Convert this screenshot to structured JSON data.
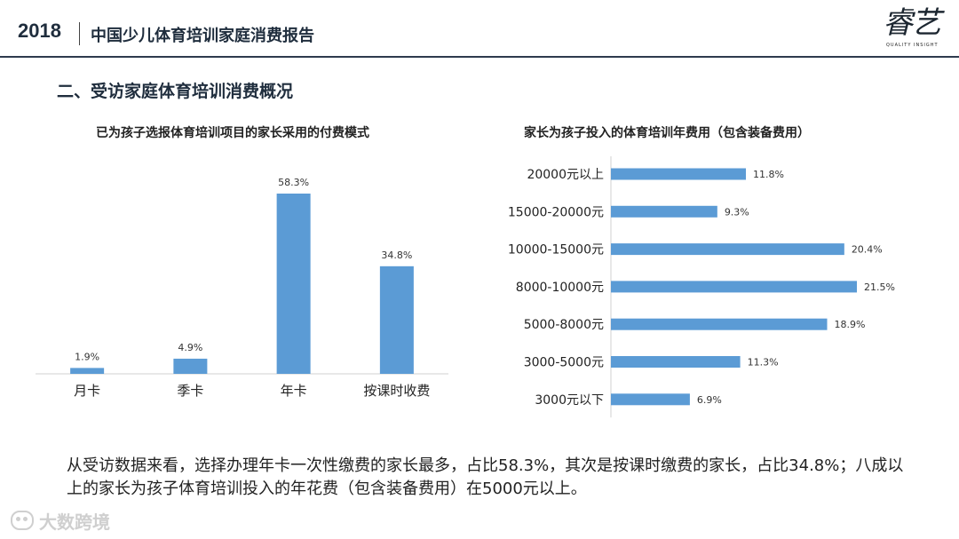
{
  "header": {
    "year": "2018",
    "report_title": "中国少儿体育培训家庭消费报告",
    "logo_text": "睿艺",
    "logo_subtext": "QUALITY   INSIGHT"
  },
  "section_title": "二、受访家庭体育培训消费概况",
  "colors": {
    "bar": "#5b9bd5",
    "axis": "#d0d0d0",
    "header_rule": "#2e3b4e"
  },
  "chart_data": [
    {
      "type": "bar",
      "title": "已为孩子选报体育培训项目的家长采用的付费模式",
      "categories": [
        "月卡",
        "季卡",
        "年卡",
        "按课时收费"
      ],
      "values": [
        1.9,
        4.9,
        58.3,
        34.8
      ],
      "value_labels": [
        "1.9%",
        "4.9%",
        "58.3%",
        "34.8%"
      ],
      "unit": "%",
      "ylim": [
        0,
        58.3
      ],
      "grid": false,
      "legend": "none"
    },
    {
      "type": "bar",
      "orientation": "horizontal",
      "title": "家长为孩子投入的体育培训年费用（包含装备费用）",
      "categories": [
        "20000元以上",
        "15000-20000元",
        "10000-15000元",
        "8000-10000元",
        "5000-8000元",
        "3000-5000元",
        "3000元以下"
      ],
      "values": [
        11.8,
        9.3,
        20.4,
        21.5,
        18.9,
        11.3,
        6.9
      ],
      "value_labels": [
        "11.8%",
        "9.3%",
        "20.4%",
        "21.5%",
        "18.9%",
        "11.3%",
        "6.9%"
      ],
      "unit": "%",
      "xlim": [
        0,
        21.5
      ],
      "grid": false,
      "legend": "none"
    }
  ],
  "summary": "从受访数据来看，选择办理年卡一次性缴费的家长最多，占比58.3%，其次是按课时缴费的家长，占比34.8%；八成以上的家长为孩子体育培训投入的年花费（包含装备费用）在5000元以上。",
  "footer": {
    "brand": "大数跨境",
    "icon": "brand-logo-icon"
  }
}
